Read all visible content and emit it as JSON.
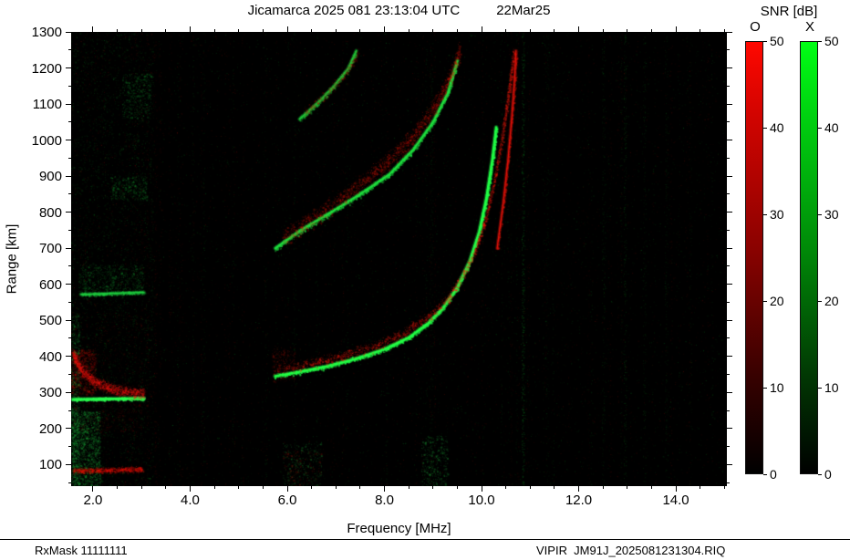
{
  "header": {
    "station_datetime": "Jicamarca 2025 081 23:13:04 UTC",
    "date_label": "22Mar25"
  },
  "colorbar": {
    "title": "SNR [dB]",
    "min": 0,
    "max": 50,
    "ticks": [
      0,
      10,
      20,
      30,
      40,
      50
    ],
    "o_label": "O",
    "x_label": "X",
    "o_color": "#ff0000",
    "x_color": "#00ff00"
  },
  "footer": {
    "rxmask": "RxMask 11111111",
    "file_id": "VIPIR  JM91J_2025081231304.RIQ"
  },
  "chart_data": {
    "type": "heatmap",
    "title": "Jicamarca 2025 081 23:13:04 UTC  22Mar25",
    "xlabel": "Frequency [MHz]",
    "ylabel": "Range [km]",
    "xlim": [
      1.55,
      15.05
    ],
    "ylim": [
      40,
      1300
    ],
    "xticks": {
      "values": [
        2,
        4,
        6,
        8,
        10,
        12,
        14
      ],
      "labels": [
        "2.0",
        "4.0",
        "6.0",
        "8.0",
        "10.0",
        "12.0",
        "14.0"
      ]
    },
    "yticks": {
      "values": [
        100,
        200,
        300,
        400,
        500,
        600,
        700,
        800,
        900,
        1000,
        1100,
        1200,
        1300
      ],
      "labels": [
        "100",
        "200",
        "300",
        "400",
        "500",
        "600",
        "700",
        "800",
        "900",
        "1000",
        "1100",
        "1200",
        "1300"
      ]
    },
    "xminor_step": 0.5,
    "yminor_step": 50,
    "background": "#000000",
    "legend": {
      "O": "ordinary mode (red)",
      "X": "extraordinary mode (green)"
    },
    "noise": {
      "base_dots": 9000,
      "left_extra_dots": 2400,
      "left_region_max_f": 3.25,
      "column_noise_columns": 70
    },
    "traces": [
      {
        "name": "f-region-1st-hop-x",
        "color": "#21ff46",
        "core": 2.4,
        "jitter": 6,
        "n": 2600,
        "alpha": 0.75,
        "points": [
          [
            5.75,
            345
          ],
          [
            6.2,
            356
          ],
          [
            6.8,
            372
          ],
          [
            7.4,
            393
          ],
          [
            8.0,
            420
          ],
          [
            8.5,
            452
          ],
          [
            8.9,
            492
          ],
          [
            9.2,
            533
          ],
          [
            9.5,
            592
          ],
          [
            9.75,
            662
          ],
          [
            9.95,
            745
          ],
          [
            10.1,
            840
          ],
          [
            10.22,
            945
          ],
          [
            10.3,
            1035
          ]
        ]
      },
      {
        "name": "f-region-1st-hop-o",
        "color": "#ee1c0e",
        "core": 0,
        "jitter": 13,
        "n": 2400,
        "alpha": 0.42,
        "points": [
          [
            5.78,
            362
          ],
          [
            6.4,
            378
          ],
          [
            7.1,
            400
          ],
          [
            7.8,
            428
          ],
          [
            8.4,
            465
          ],
          [
            8.9,
            510
          ],
          [
            9.3,
            560
          ],
          [
            9.6,
            620
          ],
          [
            9.85,
            690
          ],
          [
            10.08,
            780
          ],
          [
            10.25,
            880
          ],
          [
            10.4,
            990
          ],
          [
            10.52,
            1100
          ],
          [
            10.62,
            1200
          ],
          [
            10.66,
            1248
          ]
        ]
      },
      {
        "name": "f-region-1st-hop-o-asymptote",
        "color": "#e01208",
        "core": 1.3,
        "jitter": 3,
        "n": 600,
        "alpha": 0.5,
        "points": [
          [
            10.32,
            700
          ],
          [
            10.44,
            820
          ],
          [
            10.54,
            940
          ],
          [
            10.62,
            1060
          ],
          [
            10.68,
            1170
          ],
          [
            10.71,
            1248
          ]
        ]
      },
      {
        "name": "f-region-2nd-hop-x",
        "color": "#1de03e",
        "core": 2.0,
        "jitter": 7,
        "n": 1900,
        "alpha": 0.65,
        "points": [
          [
            5.75,
            700
          ],
          [
            6.3,
            752
          ],
          [
            6.9,
            800
          ],
          [
            7.5,
            850
          ],
          [
            8.1,
            905
          ],
          [
            8.6,
            975
          ],
          [
            9.0,
            1050
          ],
          [
            9.3,
            1130
          ],
          [
            9.5,
            1220
          ]
        ]
      },
      {
        "name": "f-region-2nd-hop-o",
        "color": "#da1707",
        "core": 0,
        "jitter": 24,
        "n": 2100,
        "alpha": 0.35,
        "points": [
          [
            5.9,
            725
          ],
          [
            6.6,
            788
          ],
          [
            7.3,
            856
          ],
          [
            8.0,
            932
          ],
          [
            8.6,
            1012
          ],
          [
            9.1,
            1105
          ],
          [
            9.4,
            1190
          ],
          [
            9.55,
            1248
          ]
        ]
      },
      {
        "name": "f-region-3rd-hop-x",
        "color": "#1cc938",
        "core": 1.6,
        "jitter": 8,
        "n": 650,
        "alpha": 0.55,
        "points": [
          [
            6.25,
            1058
          ],
          [
            6.6,
            1100
          ],
          [
            6.95,
            1148
          ],
          [
            7.25,
            1198
          ],
          [
            7.42,
            1248
          ]
        ]
      },
      {
        "name": "f-region-3rd-hop-o",
        "color": "#b81407",
        "core": 0,
        "jitter": 13,
        "n": 420,
        "alpha": 0.3,
        "points": [
          [
            6.35,
            1075
          ],
          [
            6.8,
            1128
          ],
          [
            7.2,
            1185
          ],
          [
            7.45,
            1242
          ]
        ]
      },
      {
        "name": "low-freq-echo-x",
        "color": "#2bff50",
        "core": 2.2,
        "jitter": 4,
        "n": 900,
        "alpha": 0.7,
        "points": [
          [
            1.58,
            281
          ],
          [
            3.05,
            284
          ]
        ]
      },
      {
        "name": "low-freq-cusp-o",
        "color": "#e61510",
        "core": 0,
        "jitter": 15,
        "n": 1500,
        "alpha": 0.45,
        "points": [
          [
            1.58,
            408
          ],
          [
            1.75,
            362
          ],
          [
            2.0,
            332
          ],
          [
            2.35,
            312
          ],
          [
            2.75,
            300
          ],
          [
            3.05,
            296
          ]
        ]
      },
      {
        "name": "low-freq-2nd-hop-x",
        "color": "#1fd040",
        "core": 1.4,
        "jitter": 5,
        "n": 520,
        "alpha": 0.5,
        "points": [
          [
            1.75,
            572
          ],
          [
            3.05,
            578
          ]
        ]
      },
      {
        "name": "bottom-red-band-o",
        "color": "#e01105",
        "core": 0,
        "jitter": 7,
        "n": 900,
        "alpha": 0.45,
        "points": [
          [
            1.58,
            84
          ],
          [
            2.4,
            85
          ],
          [
            3.0,
            88
          ]
        ]
      }
    ],
    "patches": [
      {
        "name": "es-red-blob",
        "color": "#d81208",
        "f": [
          1.55,
          2.05
        ],
        "r": [
          295,
          420
        ],
        "n": 850,
        "alpha": 0.32
      },
      {
        "name": "second-hop-es-cloud",
        "color": "#18b838",
        "f": [
          1.7,
          3.05
        ],
        "r": [
          570,
          655
        ],
        "n": 650,
        "alpha": 0.28
      },
      {
        "name": "third-hop-es-cloud",
        "color": "#18b838",
        "f": [
          2.35,
          3.1
        ],
        "r": [
          835,
          900
        ],
        "n": 330,
        "alpha": 0.28
      },
      {
        "name": "fourth-hop-es-cloud",
        "color": "#18b838",
        "f": [
          2.6,
          3.2
        ],
        "r": [
          1060,
          1185
        ],
        "n": 360,
        "alpha": 0.28
      },
      {
        "name": "below-es-red",
        "color": "#c01208",
        "f": [
          1.6,
          3.0
        ],
        "r": [
          190,
          272
        ],
        "n": 240,
        "alpha": 0.2
      },
      {
        "name": "bottom-left-green-noise",
        "color": "#21c944",
        "f": [
          1.55,
          2.15
        ],
        "r": [
          40,
          250
        ],
        "n": 1500,
        "alpha": 0.33
      },
      {
        "name": "left-edge-green-noise",
        "color": "#21c944",
        "f": [
          1.55,
          1.72
        ],
        "r": [
          40,
          520
        ],
        "n": 650,
        "alpha": 0.28
      },
      {
        "name": "six-mhz-speckle-green",
        "color": "#21c944",
        "f": [
          5.9,
          6.7
        ],
        "r": [
          40,
          160
        ],
        "n": 260,
        "alpha": 0.28
      },
      {
        "name": "six-mhz-speckle-red",
        "color": "#cf1508",
        "f": [
          5.9,
          6.7
        ],
        "r": [
          40,
          140
        ],
        "n": 140,
        "alpha": 0.26
      },
      {
        "name": "nine-mhz-speckle-green",
        "color": "#21c944",
        "f": [
          8.75,
          9.3
        ],
        "r": [
          40,
          180
        ],
        "n": 300,
        "alpha": 0.32
      },
      {
        "name": "trace-head-red-fuzz",
        "color": "#cf1508",
        "f": [
          5.68,
          6.15
        ],
        "r": [
          330,
          425
        ],
        "n": 240,
        "alpha": 0.26
      },
      {
        "name": "left-band-red",
        "color": "#c01208",
        "f": [
          1.55,
          3.2
        ],
        "r": [
          250,
          520
        ],
        "n": 300,
        "alpha": 0.18
      },
      {
        "name": "left-wide-green",
        "color": "#18b030",
        "f": [
          1.55,
          3.25
        ],
        "r": [
          40,
          1300
        ],
        "n": 1100,
        "alpha": 0.16
      }
    ],
    "rfi_stripes": [
      {
        "f": 10.85,
        "color": "#10d030",
        "alpha": 0.3,
        "n": 420
      },
      {
        "f": 11.35,
        "color": "#10d030",
        "alpha": 0.12,
        "n": 150
      },
      {
        "f": 12.5,
        "color": "#10d030",
        "alpha": 0.15,
        "n": 200
      },
      {
        "f": 12.95,
        "color": "#10d030",
        "alpha": 0.2,
        "n": 260
      },
      {
        "f": 13.35,
        "color": "#10d030",
        "alpha": 0.15,
        "n": 200
      },
      {
        "f": 13.8,
        "color": "#10d030",
        "alpha": 0.12,
        "n": 160
      },
      {
        "f": 14.3,
        "color": "#10d030",
        "alpha": 0.1,
        "n": 120
      },
      {
        "f": 10.6,
        "color": "#c01008",
        "alpha": 0.12,
        "n": 150
      },
      {
        "f": 12.2,
        "color": "#c01008",
        "alpha": 0.1,
        "n": 120
      },
      {
        "f": 8.95,
        "color": "#10d030",
        "alpha": 0.12,
        "n": 140
      },
      {
        "f": 6.15,
        "color": "#10d030",
        "alpha": 0.1,
        "n": 120
      }
    ]
  }
}
